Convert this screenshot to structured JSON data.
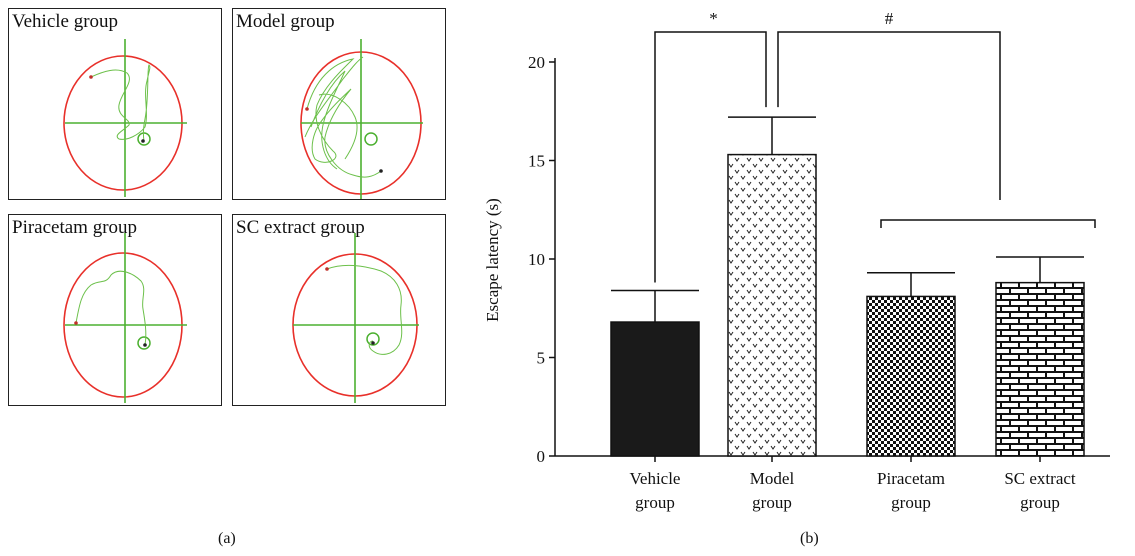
{
  "panels": [
    {
      "title": "Vehicle group"
    },
    {
      "title": "Model group"
    },
    {
      "title": "Piracetam group"
    },
    {
      "title": "SC extract group"
    }
  ],
  "captions": {
    "a": "(a)",
    "b": "(b)"
  },
  "colors": {
    "pool": "#e8302a",
    "cross": "#4cb030",
    "track": "#6cc04a",
    "bar_dark": "#1a1a1a"
  },
  "chart_data": {
    "type": "bar",
    "categories": [
      [
        "Vehicle",
        "group"
      ],
      [
        "Model",
        "group"
      ],
      [
        "Piracetam",
        "group"
      ],
      [
        "SC extract",
        "group"
      ]
    ],
    "values": [
      6.8,
      15.3,
      8.1,
      8.8
    ],
    "errors": [
      1.6,
      1.9,
      1.2,
      1.3
    ],
    "ylabel": "Escape latency (s)",
    "ylim": [
      0,
      20
    ],
    "yticks": [
      0,
      5,
      10,
      15,
      20
    ],
    "patterns": [
      "solid",
      "dots",
      "checker",
      "brick"
    ],
    "significance": [
      {
        "symbol": "*",
        "from": 0,
        "to": 1
      },
      {
        "symbol": "#",
        "from": 1,
        "to": [
          2,
          3
        ]
      }
    ]
  }
}
